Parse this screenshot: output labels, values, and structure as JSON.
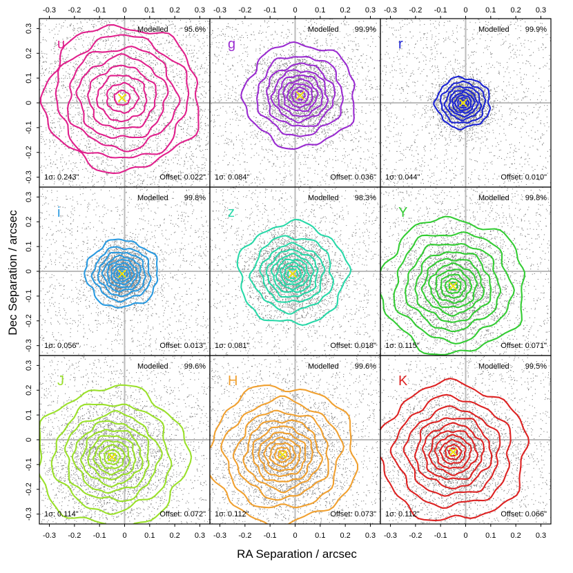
{
  "chart_data": {
    "type": "scatter",
    "layout": "3x3 panel grid",
    "xlabel": "RA Separation / arcsec",
    "ylabel": "Dec Separation / arcsec",
    "xlim": [
      -0.34,
      0.34
    ],
    "ylim": [
      -0.34,
      0.34
    ],
    "x_ticks": [
      -0.3,
      -0.2,
      -0.1,
      0,
      0.1,
      0.2,
      0.3
    ],
    "y_ticks": [
      -0.3,
      -0.2,
      -0.1,
      0,
      0.1,
      0.2,
      0.3
    ],
    "x_tick_labels": [
      "-0.3",
      "-0.2",
      "-0.1",
      "0",
      "0.1",
      "0.2",
      "0.3"
    ],
    "y_tick_labels": [
      "-0.3",
      "-0.2",
      "-0.1",
      "0",
      "0.1",
      "0.2",
      "0.3"
    ],
    "panels": [
      {
        "band": "u",
        "color": "#e0208c",
        "modelled_label": "Modelled",
        "modelled_pct": "95.6%",
        "sigma_text": "1σ: 0.243\"",
        "offset_text": "Offset: 0.022\"",
        "sigma": 0.243,
        "center": [
          -0.01,
          0.02
        ],
        "contours": [
          0.3,
          0.255,
          0.21,
          0.17,
          0.13,
          0.095,
          0.06,
          0.03
        ]
      },
      {
        "band": "g",
        "color": "#9a2bd0",
        "modelled_label": "Modelled",
        "modelled_pct": "99.9%",
        "sigma_text": "1σ: 0.084\"",
        "offset_text": "Offset: 0.036\"",
        "sigma": 0.084,
        "center": [
          0.02,
          0.03
        ],
        "contours": [
          0.215,
          0.165,
          0.13,
          0.105,
          0.085,
          0.065,
          0.048,
          0.032,
          0.018
        ]
      },
      {
        "band": "r",
        "color": "#1a22d4",
        "modelled_label": "Modelled",
        "modelled_pct": "99.9%",
        "sigma_text": "1σ: 0.044\"",
        "offset_text": "Offset: 0.010\"",
        "sigma": 0.044,
        "center": [
          -0.01,
          0.0
        ],
        "contours": [
          0.105,
          0.085,
          0.068,
          0.054,
          0.042,
          0.031,
          0.021,
          0.012
        ]
      },
      {
        "band": "i",
        "color": "#2a9ae0",
        "modelled_label": "Modelled",
        "modelled_pct": "99.8%",
        "sigma_text": "1σ: 0.056\"",
        "offset_text": "Offset: 0.013\"",
        "sigma": 0.056,
        "center": [
          -0.01,
          -0.01
        ],
        "contours": [
          0.14,
          0.11,
          0.09,
          0.072,
          0.057,
          0.043,
          0.031,
          0.02,
          0.01
        ]
      },
      {
        "band": "z",
        "color": "#28d8a8",
        "modelled_label": "Modelled",
        "modelled_pct": "98.3%",
        "sigma_text": "1σ: 0.081\"",
        "offset_text": "Offset: 0.018\"",
        "sigma": 0.081,
        "center": [
          -0.01,
          -0.01
        ],
        "contours": [
          0.21,
          0.155,
          0.12,
          0.097,
          0.078,
          0.061,
          0.046,
          0.032,
          0.019
        ]
      },
      {
        "band": "Y",
        "color": "#33cc33",
        "modelled_label": "Modelled",
        "modelled_pct": "99.8%",
        "sigma_text": "1σ: 0.115\"",
        "offset_text": "Offset: 0.071\"",
        "sigma": 0.115,
        "center": [
          -0.05,
          -0.06
        ],
        "contours": [
          0.28,
          0.225,
          0.18,
          0.145,
          0.115,
          0.09,
          0.068,
          0.048,
          0.03,
          0.016
        ]
      },
      {
        "band": "J",
        "color": "#9ae02a",
        "modelled_label": "Modelled",
        "modelled_pct": "99.6%",
        "sigma_text": "1σ: 0.114\"",
        "offset_text": "Offset: 0.072\"",
        "sigma": 0.114,
        "center": [
          -0.05,
          -0.07
        ],
        "contours": [
          0.29,
          0.225,
          0.18,
          0.145,
          0.115,
          0.09,
          0.068,
          0.048,
          0.03,
          0.016
        ]
      },
      {
        "band": "H",
        "color": "#f0a030",
        "modelled_label": "Modelled",
        "modelled_pct": "99.6%",
        "sigma_text": "1σ: 0.112\"",
        "offset_text": "Offset: 0.073\"",
        "sigma": 0.112,
        "center": [
          -0.05,
          -0.06
        ],
        "contours": [
          0.285,
          0.225,
          0.18,
          0.145,
          0.115,
          0.09,
          0.068,
          0.048,
          0.03,
          0.016
        ]
      },
      {
        "band": "K",
        "color": "#dd2222",
        "modelled_label": "Modelled",
        "modelled_pct": "99.5%",
        "sigma_text": "1σ: 0.112\"",
        "offset_text": "Offset: 0.066\"",
        "sigma": 0.112,
        "center": [
          -0.05,
          -0.05
        ],
        "contours": [
          0.285,
          0.225,
          0.18,
          0.145,
          0.115,
          0.09,
          0.068,
          0.048,
          0.03,
          0.016
        ]
      }
    ],
    "marker_color": "#f2e600",
    "axis_line_color": "#bbbbbb"
  }
}
